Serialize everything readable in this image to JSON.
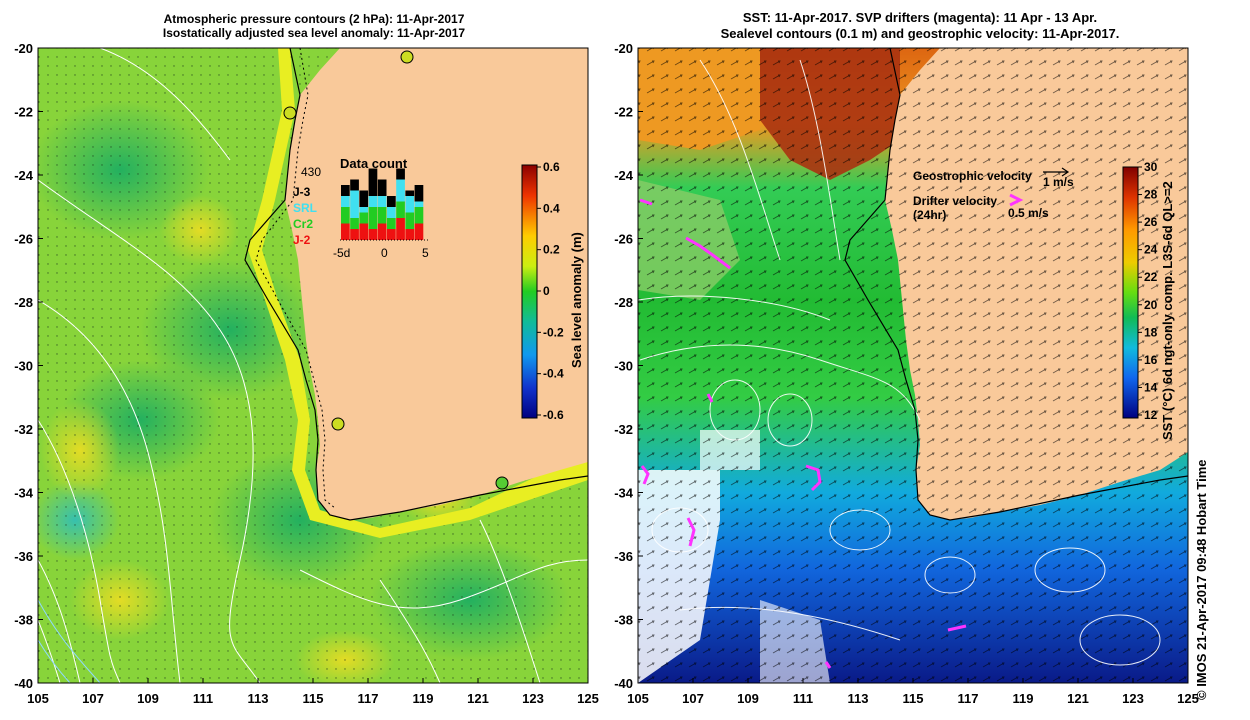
{
  "left_panel": {
    "title_line1": "Atmospheric pressure contours (2 hPa): 11-Apr-2017",
    "title_line2": "Isostatically adjusted sea level anomaly: 11-Apr-2017",
    "lat_ticks": [
      "-20",
      "-22",
      "-24",
      "-26",
      "-28",
      "-30",
      "-32",
      "-34",
      "-36",
      "-38",
      "-40"
    ],
    "lon_ticks": [
      "105",
      "107",
      "109",
      "111",
      "113",
      "115",
      "117",
      "119",
      "121",
      "123",
      "125"
    ],
    "colorbar_label": "Sea level anomaly (m)",
    "colorbar_ticks": [
      "0.6",
      "0.4",
      "0.2",
      "0",
      "-0.2",
      "-0.4",
      "-0.6"
    ],
    "inset": {
      "title": "Data count",
      "count": "430",
      "satellites": [
        {
          "name": "J-3",
          "color": "#000000"
        },
        {
          "name": "SRL",
          "color": "#40e0f0"
        },
        {
          "name": "Cr2",
          "color": "#22cc22"
        },
        {
          "name": "J-2",
          "color": "#ee1111"
        }
      ],
      "x_ticks": [
        "-5d",
        "0",
        "5"
      ],
      "bars": [
        {
          "j2": 3,
          "cr2": 3,
          "srl": 2,
          "j3": 2
        },
        {
          "j2": 2,
          "cr2": 2,
          "srl": 5,
          "j3": 2
        },
        {
          "j2": 3,
          "cr2": 2,
          "srl": 1,
          "j3": 3
        },
        {
          "j2": 2,
          "cr2": 4,
          "srl": 2,
          "j3": 5
        },
        {
          "j2": 3,
          "cr2": 3,
          "srl": 2,
          "j3": 3
        },
        {
          "j2": 2,
          "cr2": 2,
          "srl": 2,
          "j3": 2
        },
        {
          "j2": 4,
          "cr2": 3,
          "srl": 4,
          "j3": 2
        },
        {
          "j2": 2,
          "cr2": 3,
          "srl": 3,
          "j3": 1
        },
        {
          "j2": 3,
          "cr2": 3,
          "srl": 1,
          "j3": 3
        }
      ]
    }
  },
  "right_panel": {
    "title_line1": "SST: 11-Apr-2017. SVP drifters (magenta): 11 Apr - 13 Apr.",
    "title_line2": "Sealevel contours (0.1 m) and geostrophic velocity: 11-Apr-2017.",
    "lat_ticks": [
      "-20",
      "-22",
      "-24",
      "-26",
      "-28",
      "-30",
      "-32",
      "-34",
      "-36",
      "-38",
      "-40"
    ],
    "lon_ticks": [
      "105",
      "107",
      "109",
      "111",
      "113",
      "115",
      "117",
      "119",
      "121",
      "123",
      "125"
    ],
    "colorbar_label": "SST (°C) 6d ngt-only comp. L3S-6d QL>=2",
    "colorbar_ticks": [
      "30",
      "28",
      "26",
      "24",
      "22",
      "20",
      "18",
      "16",
      "14",
      "12"
    ],
    "geo_velocity_label": "Geostrophic velocity",
    "geo_velocity_scale": "1 m/s",
    "drifter_label_1": "Drifter velocity",
    "drifter_label_2": "(24hr)",
    "drifter_scale": "0.5 m/s",
    "drifter_color": "#ff33ff"
  },
  "credit": "© IMOS 21-Apr-2017 09:48 Hobart Time",
  "colors": {
    "land": "#f9c99a",
    "sla_high": "#8b0000",
    "sla_zero": "#22cc22",
    "sla_low": "#000080"
  }
}
